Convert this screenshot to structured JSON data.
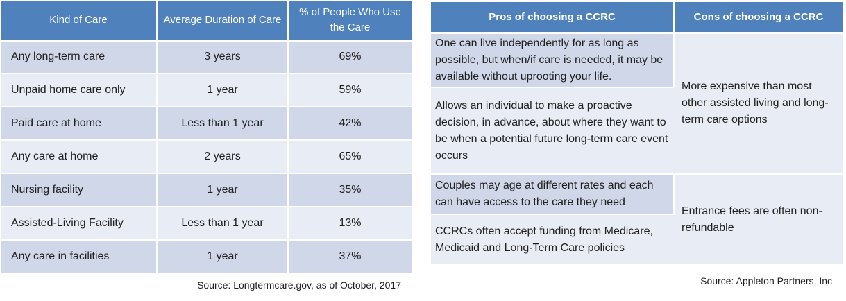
{
  "left_table": {
    "headers": [
      "Kind of Care",
      "Average Duration of Care",
      "% of People Who Use the Care"
    ],
    "rows": [
      [
        "Any long-term care",
        "3 years",
        "69%"
      ],
      [
        "Unpaid home care only",
        "1 year",
        "59%"
      ],
      [
        "Paid care at home",
        "Less than 1 year",
        "42%"
      ],
      [
        "Any care at home",
        "2 years",
        "65%"
      ],
      [
        "Nursing facility",
        "1 year",
        "35%"
      ],
      [
        "Assisted-Living Facility",
        "Less than 1 year",
        "13%"
      ],
      [
        "Any care in facilities",
        "1 year",
        "37%"
      ]
    ],
    "source": "Source:  Longtermcare.gov, as of October, 2017"
  },
  "right_table": {
    "headers": [
      "Pros of choosing a CCRC",
      "Cons of choosing a CCRC"
    ],
    "pros": [
      "One can live independently for as long as possible, but when/if care is needed, it may be available without uprooting your life.",
      "Allows an individual to make a proactive decision, in advance, about where they want to be when a potential future long-term care event occurs",
      "Couples may age at different rates and each can have access to the care they need",
      "CCRCs often accept funding from Medicare, Medicaid and Long-Term Care policies"
    ],
    "cons": [
      "More expensive than most other assisted living and long-term care options",
      "Entrance fees are often non-refundable"
    ],
    "source": "Source:  Appleton Partners, Inc"
  },
  "colors": {
    "header_blue": "#4f81bd",
    "row_shade": "#cfd7e8",
    "row_light": "#e8ecf4"
  }
}
